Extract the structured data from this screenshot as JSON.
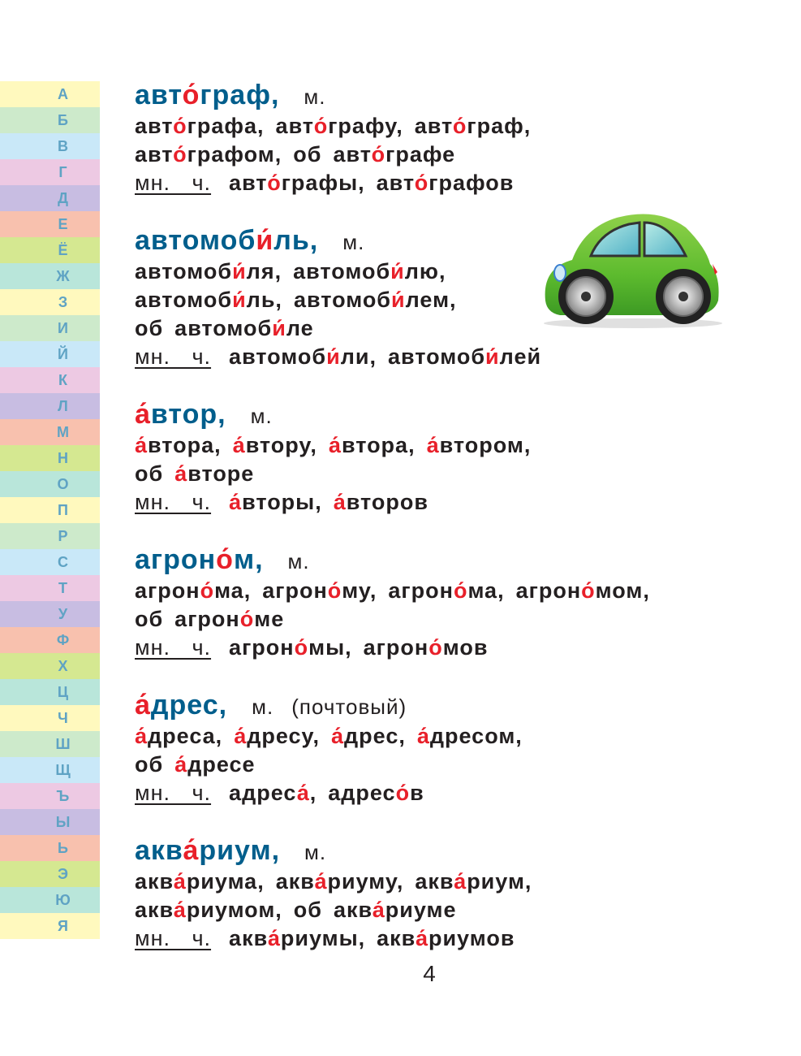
{
  "alphabet": [
    "А",
    "Б",
    "В",
    "Г",
    "Д",
    "Е",
    "Ё",
    "Ж",
    "З",
    "И",
    "Й",
    "К",
    "Л",
    "М",
    "Н",
    "О",
    "П",
    "Р",
    "С",
    "Т",
    "У",
    "Ф",
    "Х",
    "Ц",
    "Ч",
    "Ш",
    "Щ",
    "Ъ",
    "Ы",
    "Ь",
    "Э",
    "Ю",
    "Я"
  ],
  "alphabet_colors": [
    "#fff9be",
    "#cdeacb",
    "#c9e8f8",
    "#edc9e3",
    "#c8bde2",
    "#f8c1ae",
    "#d5e891",
    "#b9e6da"
  ],
  "colors": {
    "headword": "#005e8c",
    "stress": "#e8202a",
    "text": "#231f20",
    "letters": "#5fa3c4"
  },
  "plural_label": "мн. ч.",
  "entries": [
    {
      "head": [
        "авт",
        "о́",
        "граф",
        ","
      ],
      "gender": "м.",
      "lines": [
        [
          [
            "авт",
            "о́",
            "графа,"
          ],
          [
            "авт",
            "о́",
            "графу,"
          ],
          [
            "авт",
            "о́",
            "граф,"
          ]
        ],
        [
          [
            "авт",
            "о́",
            "графом,"
          ],
          [
            "об",
            "",
            ""
          ],
          [
            "авт",
            "о́",
            "графе"
          ]
        ]
      ],
      "plural": [
        [
          "авт",
          "о́",
          "графы,"
        ],
        [
          "авт",
          "о́",
          "графов"
        ]
      ]
    },
    {
      "head": [
        "автомоб",
        "и́",
        "ль",
        ","
      ],
      "gender": "м.",
      "lines": [
        [
          [
            "автомоб",
            "и́",
            "ля,"
          ],
          [
            "автомоб",
            "и́",
            "лю,"
          ]
        ],
        [
          [
            "автомоб",
            "и́",
            "ль,"
          ],
          [
            "автомоб",
            "и́",
            "лем,"
          ]
        ],
        [
          [
            "об",
            "",
            ""
          ],
          [
            "автомоб",
            "и́",
            "ле"
          ]
        ]
      ],
      "plural": [
        [
          "автомоб",
          "и́",
          "ли,"
        ],
        [
          "автомоб",
          "и́",
          "лей"
        ]
      ]
    },
    {
      "head": [
        "",
        "а́",
        "втор",
        ","
      ],
      "gender": "м.",
      "lines": [
        [
          [
            "",
            "а́",
            "втора,"
          ],
          [
            "",
            "а́",
            "втору,"
          ],
          [
            "",
            "а́",
            "втора,"
          ],
          [
            "",
            "а́",
            "втором,"
          ]
        ],
        [
          [
            "об",
            "",
            ""
          ],
          [
            "",
            "а́",
            "вторе"
          ]
        ]
      ],
      "plural": [
        [
          "",
          "а́",
          "вторы,"
        ],
        [
          "",
          "а́",
          "второв"
        ]
      ]
    },
    {
      "head": [
        "агрон",
        "о́",
        "м",
        ","
      ],
      "gender": "м.",
      "lines": [
        [
          [
            "агрон",
            "о́",
            "ма,"
          ],
          [
            "агрон",
            "о́",
            "му,"
          ],
          [
            "агрон",
            "о́",
            "ма,"
          ],
          [
            "агрон",
            "о́",
            "мом,"
          ]
        ],
        [
          [
            "об",
            "",
            ""
          ],
          [
            "агрон",
            "о́",
            "ме"
          ]
        ]
      ],
      "plural": [
        [
          "агрон",
          "о́",
          "мы,"
        ],
        [
          "агрон",
          "о́",
          "мов"
        ]
      ]
    },
    {
      "head": [
        "",
        "а́",
        "дрес",
        ","
      ],
      "gender": "м.",
      "note": "(почтовый)",
      "lines": [
        [
          [
            "",
            "а́",
            "дреса,"
          ],
          [
            "",
            "а́",
            "дресу,"
          ],
          [
            "",
            "а́",
            "дрес,"
          ],
          [
            "",
            "а́",
            "дресом,"
          ]
        ],
        [
          [
            "об",
            "",
            ""
          ],
          [
            "",
            "а́",
            "дресе"
          ]
        ]
      ],
      "plural": [
        [
          "адрес",
          "а́",
          ","
        ],
        [
          "адрес",
          "о́",
          "в"
        ]
      ]
    },
    {
      "head": [
        "акв",
        "а́",
        "риум",
        ","
      ],
      "gender": "м.",
      "lines": [
        [
          [
            "акв",
            "а́",
            "риума,"
          ],
          [
            "акв",
            "а́",
            "риуму,"
          ],
          [
            "акв",
            "а́",
            "риум,"
          ]
        ],
        [
          [
            "акв",
            "а́",
            "риумом,"
          ],
          [
            "об",
            "",
            ""
          ],
          [
            "акв",
            "а́",
            "риуме"
          ]
        ]
      ],
      "plural": [
        [
          "акв",
          "а́",
          "риумы,"
        ],
        [
          "акв",
          "а́",
          "риумов"
        ]
      ]
    }
  ],
  "illustration": "green-car-icon",
  "page_number": "4"
}
